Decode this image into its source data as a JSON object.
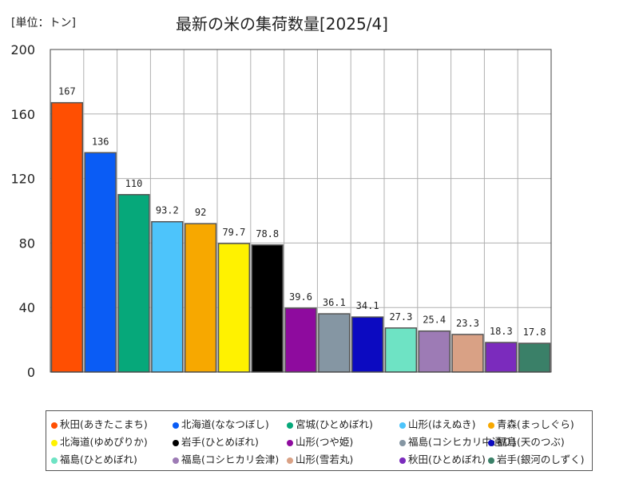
{
  "chart_data": {
    "type": "bar",
    "title": "最新の米の集荷数量[2025/4]",
    "unit_label": "[単位：トン]",
    "ylim": [
      0,
      200
    ],
    "yticks": [
      0,
      40,
      80,
      120,
      160,
      200
    ],
    "grid": true,
    "legend_position": "bottom",
    "categories": [
      "秋田(あきたこまち)",
      "北海道(ななつぼし)",
      "宮城(ひとめぼれ)",
      "山形(はえぬき)",
      "青森(まっしぐら)",
      "北海道(ゆめぴりか)",
      "岩手(ひとめぼれ)",
      "山形(つや姫)",
      "福島(コシヒカリ中通り)",
      "福島(天のつぶ)",
      "福島(ひとめぼれ)",
      "福島(コシヒカリ会津)",
      "山形(雪若丸)",
      "秋田(ひとめぼれ)",
      "岩手(銀河のしずく)"
    ],
    "values": [
      167,
      136,
      110,
      93.2,
      92,
      79.7,
      78.8,
      39.6,
      36.1,
      34.1,
      27.3,
      25.4,
      23.3,
      18.3,
      17.8
    ],
    "value_labels": [
      "167",
      "136",
      "110",
      "93.2",
      "92",
      "79.7",
      "78.8",
      "39.6",
      "36.1",
      "34.1",
      "27.3",
      "25.4",
      "23.3",
      "18.3",
      "17.8"
    ],
    "colors": [
      "#ff4f02",
      "#0a5cf5",
      "#06a87a",
      "#4dc4fb",
      "#f7a800",
      "#fff200",
      "#000000",
      "#8e0b9e",
      "#8596a3",
      "#0c0ac1",
      "#6ee3c4",
      "#9d7bb5",
      "#d9a185",
      "#7b2bbd",
      "#3a8068"
    ]
  }
}
